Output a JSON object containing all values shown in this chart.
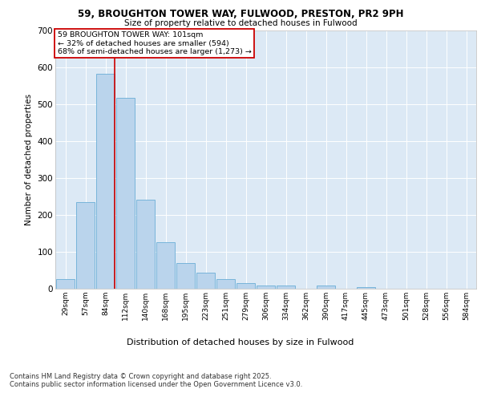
{
  "title_line1": "59, BROUGHTON TOWER WAY, FULWOOD, PRESTON, PR2 9PH",
  "title_line2": "Size of property relative to detached houses in Fulwood",
  "xlabel": "Distribution of detached houses by size in Fulwood",
  "ylabel": "Number of detached properties",
  "categories": [
    "29sqm",
    "57sqm",
    "84sqm",
    "112sqm",
    "140sqm",
    "168sqm",
    "195sqm",
    "223sqm",
    "251sqm",
    "279sqm",
    "306sqm",
    "334sqm",
    "362sqm",
    "390sqm",
    "417sqm",
    "445sqm",
    "473sqm",
    "501sqm",
    "528sqm",
    "556sqm",
    "584sqm"
  ],
  "values": [
    27,
    234,
    581,
    516,
    242,
    125,
    70,
    44,
    27,
    15,
    8,
    8,
    0,
    8,
    0,
    5,
    0,
    0,
    0,
    0,
    0
  ],
  "bar_color": "#bad4ec",
  "bar_edge_color": "#6aaed6",
  "vline_color": "#cc0000",
  "vline_x_idx": 2,
  "annotation_text": "59 BROUGHTON TOWER WAY: 101sqm\n← 32% of detached houses are smaller (594)\n68% of semi-detached houses are larger (1,273) →",
  "annotation_box_color": "#cc0000",
  "annotation_bg_color": "white",
  "ylim": [
    0,
    700
  ],
  "yticks": [
    0,
    100,
    200,
    300,
    400,
    500,
    600,
    700
  ],
  "background_color": "#dce9f5",
  "footer_line1": "Contains HM Land Registry data © Crown copyright and database right 2025.",
  "footer_line2": "Contains public sector information licensed under the Open Government Licence v3.0."
}
